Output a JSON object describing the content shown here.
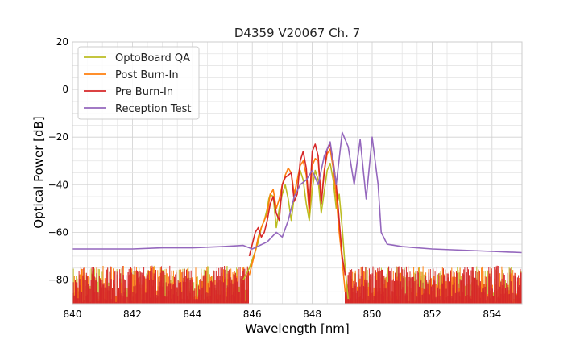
{
  "chart_data": {
    "type": "line",
    "title": "D4359 V20067 Ch. 7",
    "xlabel": "Wavelength [nm]",
    "ylabel": "Optical Power [dB]",
    "xlim": [
      840,
      855
    ],
    "ylim": [
      -90,
      20
    ],
    "xticks": [
      840,
      842,
      844,
      846,
      848,
      850,
      852,
      854
    ],
    "yticks": [
      -80,
      -60,
      -40,
      -20,
      0,
      20
    ],
    "xtick_labels": [
      "840",
      "842",
      "844",
      "846",
      "848",
      "850",
      "852",
      "854"
    ],
    "ytick_labels": [
      "−80",
      "−60",
      "−40",
      "−20",
      "0",
      "20"
    ],
    "grid": true,
    "legend_position": "top-left",
    "series": [
      {
        "name": "OptoBoard QA",
        "color": "#bcbd22",
        "x": [
          845.7,
          845.9,
          846.1,
          846.2,
          846.3,
          846.4,
          846.5,
          846.55,
          846.6,
          846.7,
          846.8,
          846.9,
          847.0,
          847.05,
          847.1,
          847.2,
          847.3,
          847.4,
          847.5,
          847.6,
          847.7,
          847.8,
          847.9,
          848.0,
          848.1,
          848.2,
          848.3,
          848.4,
          848.5,
          848.6,
          848.7,
          848.8,
          848.9,
          849.0,
          849.1,
          849.2
        ],
        "y": [
          -80,
          -75,
          -68,
          -64,
          -58,
          -55,
          -50,
          -46,
          -44,
          -45,
          -58,
          -50,
          -44,
          -42,
          -40,
          -46,
          -55,
          -45,
          -38,
          -34,
          -38,
          -48,
          -55,
          -42,
          -34,
          -38,
          -52,
          -43,
          -34,
          -31,
          -38,
          -50,
          -44,
          -58,
          -75,
          -88
        ]
      },
      {
        "name": "Post Burn-In",
        "color": "#ff7f0e",
        "x": [
          845.9,
          846.1,
          846.2,
          846.3,
          846.4,
          846.5,
          846.6,
          846.7,
          846.8,
          846.9,
          847.0,
          847.1,
          847.2,
          847.3,
          847.4,
          847.5,
          847.6,
          847.7,
          847.8,
          847.9,
          848.0,
          848.1,
          848.2,
          848.3,
          848.4,
          848.5,
          848.6,
          848.7,
          848.8,
          848.9,
          849.0,
          849.1
        ],
        "y": [
          -78,
          -68,
          -62,
          -58,
          -55,
          -52,
          -44,
          -42,
          -50,
          -46,
          -40,
          -36,
          -33,
          -35,
          -44,
          -38,
          -32,
          -30,
          -36,
          -52,
          -32,
          -29,
          -30,
          -47,
          -34,
          -27,
          -25,
          -33,
          -45,
          -60,
          -72,
          -85
        ]
      },
      {
        "name": "Pre Burn-In",
        "color": "#d62728",
        "x": [
          845.9,
          846.0,
          846.1,
          846.2,
          846.3,
          846.4,
          846.5,
          846.6,
          846.7,
          846.8,
          846.9,
          847.0,
          847.1,
          847.2,
          847.3,
          847.4,
          847.5,
          847.6,
          847.7,
          847.8,
          847.9,
          848.0,
          848.1,
          848.2,
          848.3,
          848.4,
          848.5,
          848.6,
          848.7,
          848.8,
          848.9,
          849.0,
          849.1
        ],
        "y": [
          -70,
          -65,
          -60,
          -58,
          -62,
          -60,
          -55,
          -48,
          -45,
          -52,
          -55,
          -40,
          -37,
          -36,
          -35,
          -47,
          -44,
          -30,
          -26,
          -33,
          -50,
          -26,
          -23,
          -28,
          -48,
          -35,
          -25,
          -23,
          -30,
          -40,
          -55,
          -70,
          -78
        ]
      },
      {
        "name": "Reception Test",
        "color": "#9467bd",
        "x": [
          840.0,
          841.0,
          842.0,
          843.0,
          844.0,
          845.0,
          845.7,
          846.0,
          846.5,
          846.8,
          847.0,
          847.2,
          847.4,
          847.6,
          847.8,
          848.0,
          848.2,
          848.4,
          848.6,
          848.8,
          849.0,
          849.2,
          849.4,
          849.6,
          849.8,
          850.0,
          850.2,
          850.3,
          850.5,
          851.0,
          852.0,
          853.0,
          854.0,
          855.0
        ],
        "y": [
          -67,
          -67,
          -67,
          -66.5,
          -66.5,
          -66,
          -65.5,
          -67,
          -64,
          -60,
          -62,
          -55,
          -45,
          -40,
          -38,
          -34,
          -40,
          -28,
          -22,
          -40,
          -18,
          -24,
          -40,
          -21,
          -46,
          -20,
          -40,
          -60,
          -65,
          -66,
          -67,
          -67.5,
          -68,
          -68.5
        ]
      }
    ],
    "noise_floor": {
      "description": "dense noise under curves",
      "y_range": [
        -90,
        -74
      ],
      "x_ranges": [
        [
          840,
          845.9
        ],
        [
          849.1,
          855
        ]
      ]
    }
  }
}
